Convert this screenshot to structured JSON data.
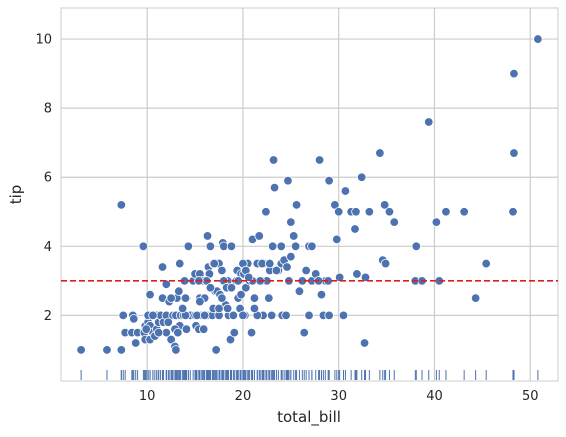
{
  "chart_data": {
    "type": "scatter",
    "xlabel": "total_bill",
    "ylabel": "tip",
    "xlim": [
      1.0,
      52.9
    ],
    "ylim": [
      0.1,
      10.9
    ],
    "xticks": [
      10,
      20,
      30,
      40,
      50
    ],
    "yticks": [
      2,
      4,
      6,
      8,
      10
    ],
    "grid": true,
    "reference_line": {
      "axis": "y",
      "value": 3.0,
      "color": "#e41a1c",
      "style": "dashed"
    },
    "rug": {
      "axis": "x"
    },
    "point_color": "#4c72b0",
    "series": [
      {
        "points": [
          [
            3.1,
            1.0
          ],
          [
            5.8,
            1.0
          ],
          [
            7.3,
            1.0
          ],
          [
            7.3,
            5.2
          ],
          [
            7.5,
            2.0
          ],
          [
            7.7,
            1.5
          ],
          [
            8.4,
            1.5
          ],
          [
            8.5,
            2.0
          ],
          [
            8.6,
            1.9
          ],
          [
            8.8,
            1.2
          ],
          [
            9.0,
            1.5
          ],
          [
            9.6,
            4.0
          ],
          [
            9.7,
            1.5
          ],
          [
            9.8,
            1.7
          ],
          [
            9.8,
            1.3
          ],
          [
            10.1,
            1.8
          ],
          [
            10.1,
            2.0
          ],
          [
            10.3,
            1.7
          ],
          [
            10.3,
            2.6
          ],
          [
            10.3,
            1.3
          ],
          [
            10.6,
            1.5
          ],
          [
            10.8,
            1.4
          ],
          [
            11.0,
            1.6
          ],
          [
            11.0,
            2.0
          ],
          [
            11.2,
            1.8
          ],
          [
            11.4,
            2.0
          ],
          [
            11.6,
            3.4
          ],
          [
            11.6,
            2.5
          ],
          [
            11.7,
            1.8
          ],
          [
            12.0,
            1.5
          ],
          [
            12.0,
            2.0
          ],
          [
            12.3,
            2.4
          ],
          [
            12.5,
            1.3
          ],
          [
            12.6,
            2.5
          ],
          [
            12.7,
            2.0
          ],
          [
            12.9,
            1.1
          ],
          [
            13.0,
            2.0
          ],
          [
            13.0,
            1.0
          ],
          [
            13.1,
            2.5
          ],
          [
            13.3,
            2.7
          ],
          [
            13.4,
            3.5
          ],
          [
            13.4,
            1.7
          ],
          [
            13.5,
            2.0
          ],
          [
            13.8,
            2.0
          ],
          [
            13.9,
            3.0
          ],
          [
            14.1,
            2.5
          ],
          [
            14.3,
            4.0
          ],
          [
            14.3,
            2.0
          ],
          [
            14.5,
            2.0
          ],
          [
            14.8,
            3.0
          ],
          [
            15.0,
            3.2
          ],
          [
            15.0,
            2.0
          ],
          [
            15.1,
            1.7
          ],
          [
            15.4,
            1.6
          ],
          [
            15.5,
            2.5
          ],
          [
            15.5,
            3.2
          ],
          [
            15.7,
            2.0
          ],
          [
            15.8,
            3.0
          ],
          [
            16.0,
            2.5
          ],
          [
            16.3,
            2.0
          ],
          [
            16.3,
            4.3
          ],
          [
            16.4,
            3.4
          ],
          [
            16.5,
            3.2
          ],
          [
            16.6,
            4.0
          ],
          [
            16.8,
            2.0
          ],
          [
            16.9,
            3.5
          ],
          [
            17.1,
            2.7
          ],
          [
            17.2,
            1.0
          ],
          [
            17.3,
            2.7
          ],
          [
            17.5,
            3.5
          ],
          [
            17.6,
            2.6
          ],
          [
            17.8,
            3.3
          ],
          [
            17.9,
            4.1
          ],
          [
            18.0,
            4.0
          ],
          [
            18.2,
            2.3
          ],
          [
            18.3,
            3.0
          ],
          [
            18.4,
            3.0
          ],
          [
            18.5,
            2.0
          ],
          [
            18.7,
            1.3
          ],
          [
            18.8,
            4.0
          ],
          [
            19.1,
            1.5
          ],
          [
            19.4,
            3.3
          ],
          [
            19.5,
            2.5
          ],
          [
            19.7,
            2.2
          ],
          [
            19.8,
            3.2
          ],
          [
            20.1,
            3.2
          ],
          [
            20.2,
            2.0
          ],
          [
            20.3,
            2.8
          ],
          [
            20.5,
            3.5
          ],
          [
            20.7,
            3.0
          ],
          [
            20.9,
            1.5
          ],
          [
            21.0,
            3.0
          ],
          [
            21.0,
            4.2
          ],
          [
            21.2,
            2.5
          ],
          [
            21.5,
            3.5
          ],
          [
            21.7,
            4.3
          ],
          [
            22.1,
            2.0
          ],
          [
            22.2,
            3.5
          ],
          [
            22.4,
            5.0
          ],
          [
            22.7,
            2.5
          ],
          [
            22.8,
            3.3
          ],
          [
            23.1,
            4.0
          ],
          [
            23.2,
            6.5
          ],
          [
            23.3,
            5.7
          ],
          [
            23.7,
            3.3
          ],
          [
            24.0,
            3.5
          ],
          [
            24.1,
            2.0
          ],
          [
            24.3,
            3.6
          ],
          [
            24.6,
            3.4
          ],
          [
            24.7,
            5.9
          ],
          [
            25.0,
            3.7
          ],
          [
            25.3,
            4.3
          ],
          [
            25.6,
            5.2
          ],
          [
            25.9,
            2.7
          ],
          [
            26.4,
            1.5
          ],
          [
            26.6,
            3.3
          ],
          [
            26.9,
            2.0
          ],
          [
            27.2,
            3.0
          ],
          [
            27.6,
            3.2
          ],
          [
            28.0,
            6.5
          ],
          [
            28.2,
            2.6
          ],
          [
            28.4,
            2.0
          ],
          [
            28.6,
            3.0
          ],
          [
            28.9,
            3.0
          ],
          [
            29.0,
            5.9
          ],
          [
            29.6,
            5.2
          ],
          [
            29.8,
            4.2
          ],
          [
            30.1,
            3.1
          ],
          [
            30.5,
            2.0
          ],
          [
            30.7,
            5.6
          ],
          [
            31.3,
            5.0
          ],
          [
            31.7,
            4.5
          ],
          [
            31.9,
            3.2
          ],
          [
            32.4,
            6.0
          ],
          [
            32.7,
            1.2
          ],
          [
            32.8,
            3.1
          ],
          [
            34.3,
            6.7
          ],
          [
            34.6,
            3.6
          ],
          [
            34.8,
            5.2
          ],
          [
            35.3,
            5.0
          ],
          [
            35.8,
            4.7
          ],
          [
            38.0,
            3.0
          ],
          [
            38.1,
            4.0
          ],
          [
            38.7,
            3.0
          ],
          [
            39.4,
            7.6
          ],
          [
            40.2,
            4.7
          ],
          [
            40.5,
            3.0
          ],
          [
            41.2,
            5.0
          ],
          [
            43.1,
            5.0
          ],
          [
            44.3,
            2.5
          ],
          [
            45.4,
            3.5
          ],
          [
            48.2,
            5.0
          ],
          [
            48.3,
            6.7
          ],
          [
            48.3,
            9.0
          ],
          [
            50.8,
            10.0
          ],
          [
            14.0,
            2.0
          ],
          [
            15.2,
            2.0
          ],
          [
            16.0,
            2.0
          ],
          [
            17.5,
            2.0
          ],
          [
            19.0,
            2.0
          ],
          [
            20.0,
            2.0
          ],
          [
            21.5,
            2.0
          ],
          [
            23.0,
            2.0
          ],
          [
            24.5,
            2.0
          ],
          [
            16.2,
            3.0
          ],
          [
            18.0,
            3.0
          ],
          [
            19.3,
            3.0
          ],
          [
            22.0,
            3.0
          ],
          [
            24.8,
            3.0
          ],
          [
            17.0,
            3.5
          ],
          [
            20.0,
            3.5
          ],
          [
            22.0,
            3.5
          ],
          [
            12.5,
            2.5
          ],
          [
            14.0,
            2.5
          ],
          [
            17.8,
            2.5
          ],
          [
            10.6,
            2.0
          ],
          [
            12.2,
            1.8
          ],
          [
            13.7,
            2.2
          ],
          [
            15.5,
            2.4
          ],
          [
            16.9,
            2.2
          ],
          [
            18.3,
            2.8
          ],
          [
            19.8,
            2.6
          ],
          [
            21.2,
            2.2
          ],
          [
            22.5,
            3.0
          ],
          [
            25.5,
            4.0
          ],
          [
            26.9,
            4.0
          ],
          [
            27.9,
            3.0
          ],
          [
            30.0,
            5.0
          ],
          [
            31.8,
            5.0
          ],
          [
            11.2,
            1.5
          ],
          [
            12.9,
            1.6
          ],
          [
            14.1,
            1.6
          ],
          [
            15.9,
            1.6
          ],
          [
            17.5,
            2.2
          ],
          [
            18.8,
            2.8
          ],
          [
            20.3,
            3.3
          ],
          [
            21.8,
            3.0
          ],
          [
            23.5,
            3.3
          ],
          [
            24.0,
            4.0
          ],
          [
            26.2,
            3.0
          ],
          [
            29.0,
            2.0
          ],
          [
            33.2,
            5.0
          ],
          [
            34.9,
            3.5
          ],
          [
            27.2,
            4.0
          ],
          [
            19.5,
            3.0
          ],
          [
            15.4,
            3.0
          ],
          [
            12.0,
            2.9
          ],
          [
            9.9,
            1.6
          ],
          [
            13.2,
            1.5
          ],
          [
            16.6,
            2.8
          ],
          [
            18.4,
            2.2
          ],
          [
            20.6,
            3.1
          ],
          [
            22.8,
            3.5
          ],
          [
            25.0,
            4.7
          ]
        ]
      }
    ]
  }
}
